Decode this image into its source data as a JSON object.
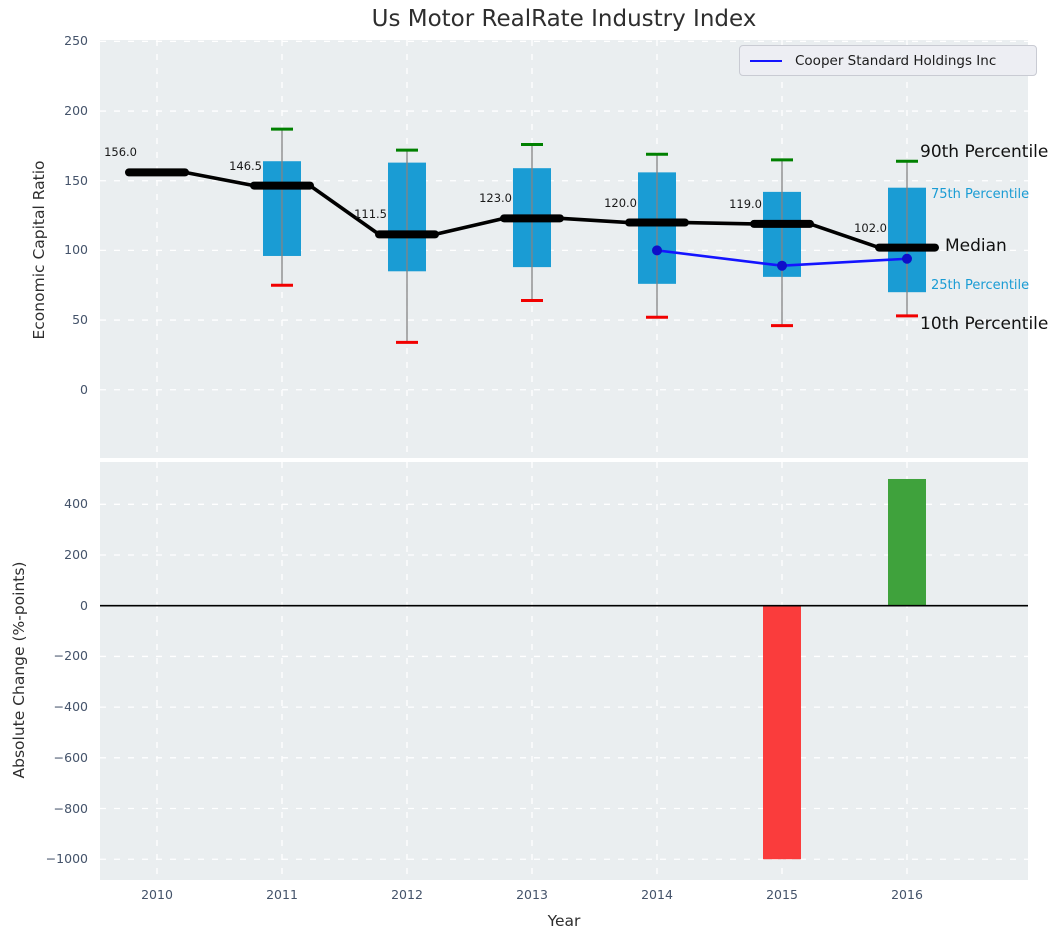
{
  "title": "Us Motor RealRate Industry Index",
  "legend": {
    "label": "Cooper Standard Holdings Inc"
  },
  "percentile_labels": {
    "p90": "90th Percentile",
    "p75": "75th Percentile",
    "median": "Median",
    "p25": "25th Percentile",
    "p10": "10th Percentile"
  },
  "colors": {
    "box": "#1a9cd4",
    "whisker": "#848484",
    "cap_high": "#008000",
    "cap_low": "#f10000",
    "median_line": "#000000",
    "company_line": "#1414ff",
    "company_dot": "#0e0ec9",
    "bar_negative": "#fa3c3c",
    "bar_positive": "#3fa23c",
    "plot_bg": "#eaeef0",
    "grid": "#ffffff",
    "tick": "#44536a",
    "annotation_blue": "#1a9cd4"
  },
  "chart_data": [
    {
      "type": "boxplot+line",
      "ylabel": "Economic Capital Ratio",
      "years": [
        2010,
        2011,
        2012,
        2013,
        2014,
        2015,
        2016
      ],
      "yticks": [
        250,
        200,
        150,
        100,
        50,
        0
      ],
      "ylim": [
        -49,
        251
      ],
      "grid": true,
      "legend_position": "upper right",
      "boxes": [
        {
          "year": 2010,
          "median": 156.0,
          "label": "156.0"
        },
        {
          "year": 2011,
          "p90": 187,
          "p75": 164,
          "median": 146.5,
          "p25": 96,
          "p10": 75,
          "label": "146.5"
        },
        {
          "year": 2012,
          "p90": 172,
          "p75": 163,
          "median": 111.5,
          "p25": 85,
          "p10": 34,
          "label": "111.5"
        },
        {
          "year": 2013,
          "p90": 176,
          "p75": 159,
          "median": 123.0,
          "p25": 88,
          "p10": 64,
          "label": "123.0"
        },
        {
          "year": 2014,
          "p90": 169,
          "p75": 156,
          "median": 120.0,
          "p25": 76,
          "p10": 52,
          "label": "120.0"
        },
        {
          "year": 2015,
          "p90": 165,
          "p75": 142,
          "median": 119.0,
          "p25": 81,
          "p10": 46,
          "label": "119.0"
        },
        {
          "year": 2016,
          "p90": 164,
          "p75": 145,
          "median": 102.0,
          "p25": 70,
          "p10": 53,
          "label": "102.0"
        }
      ],
      "company_series": {
        "name": "Cooper Standard Holdings Inc",
        "points": [
          {
            "year": 2014,
            "value": 100
          },
          {
            "year": 2015,
            "value": 89
          },
          {
            "year": 2016,
            "value": 94
          }
        ]
      }
    },
    {
      "type": "bar",
      "ylabel": "Absolute Change (%-points)",
      "xlabel": "Year",
      "categories": [
        2010,
        2011,
        2012,
        2013,
        2014,
        2015,
        2016
      ],
      "values": [
        null,
        null,
        null,
        null,
        null,
        -1000,
        500
      ],
      "yticks": [
        400,
        200,
        0,
        -200,
        -400,
        -600,
        -800,
        -1000
      ],
      "ylim": [
        -1082,
        567
      ],
      "grid": true,
      "zero_line": true
    }
  ]
}
